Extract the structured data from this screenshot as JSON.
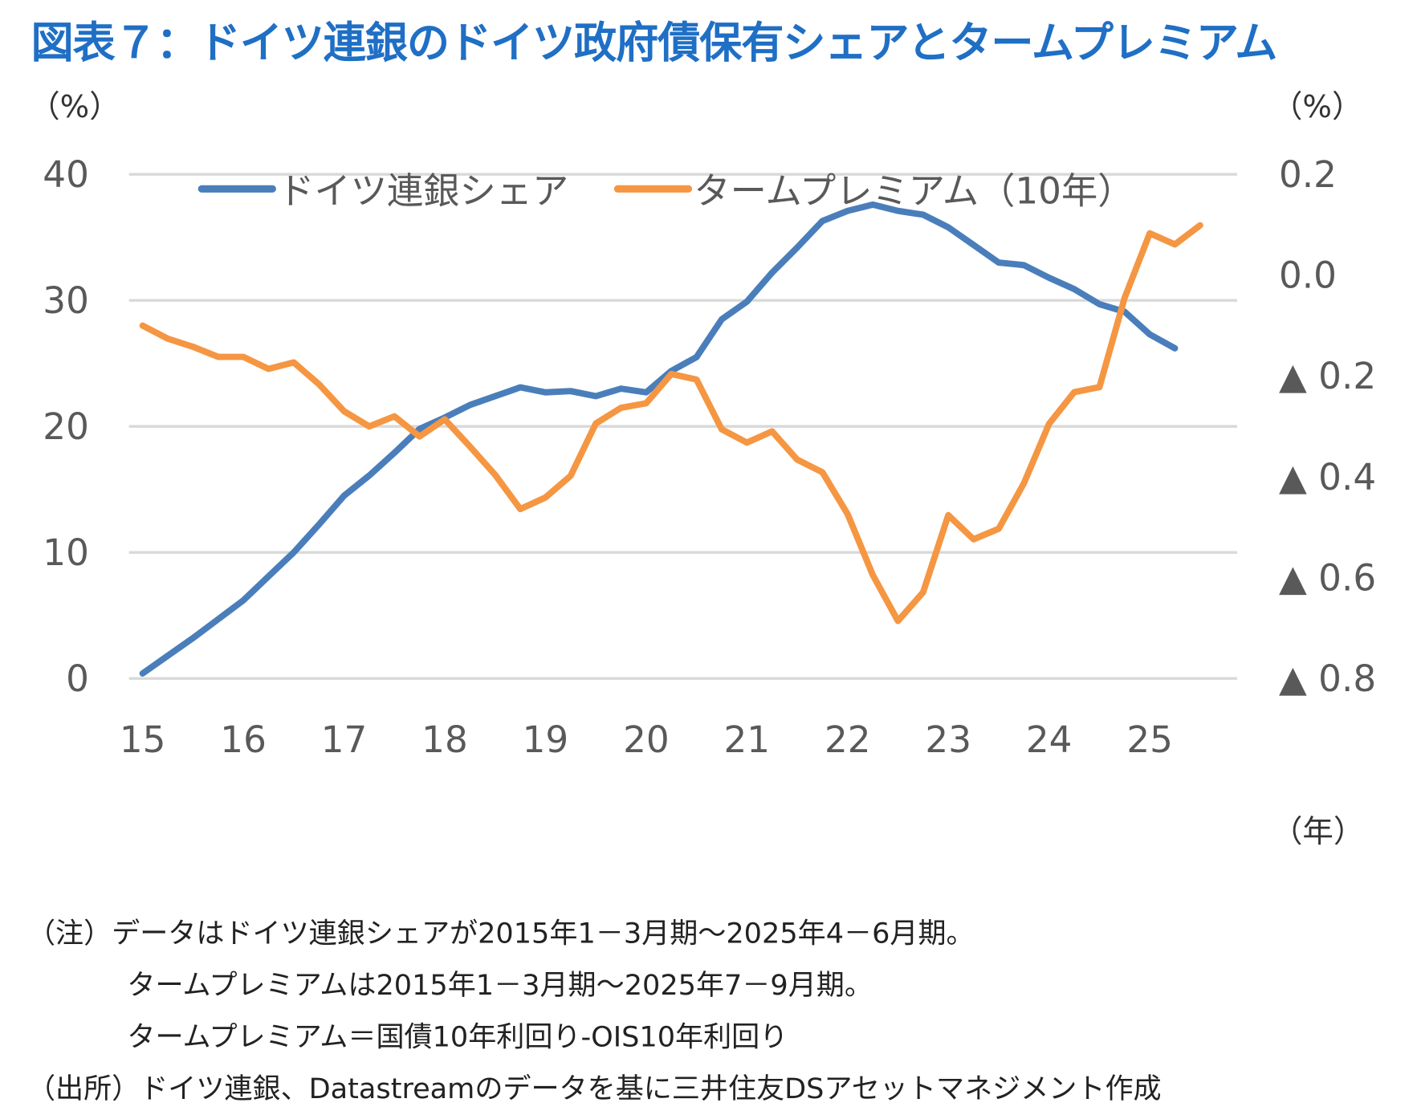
{
  "title": "図表７：ドイツ連銀のドイツ政府債保有シェアとタームプレミアム",
  "notes": [
    "（注）データはドイツ連銀シェアが2015年1－3月期～2025年4－6月期。",
    "タームプレミアムは2015年1－3月期～2025年7－9月期。",
    "タームプレミアム＝国債10年利回り-OIS10年利回り",
    "（出所）ドイツ連銀、Datastreamのデータを基に三井住友DSアセットマネジメント作成"
  ],
  "chart_data": {
    "type": "line",
    "left_unit": "（%）",
    "right_unit": "（%）",
    "x_unit": "（年）",
    "x_ticks": [
      "15",
      "16",
      "17",
      "18",
      "19",
      "20",
      "21",
      "22",
      "23",
      "24",
      "25"
    ],
    "y_left": {
      "lim": [
        0,
        40
      ],
      "ticks": [
        0,
        10,
        20,
        30,
        40
      ],
      "tick_labels": [
        "0",
        "10",
        "20",
        "30",
        "40"
      ]
    },
    "y_right": {
      "lim": [
        -0.8,
        0.2
      ],
      "ticks": [
        0.2,
        0.0,
        -0.2,
        -0.4,
        -0.6,
        -0.8
      ],
      "tick_labels": [
        "0.2",
        "0.0",
        "▲ 0.2",
        "▲ 0.4",
        "▲ 0.6",
        "▲ 0.8"
      ]
    },
    "grid": true,
    "legend": "top",
    "x_start": "2015Q1",
    "frequency": "quarterly",
    "series": [
      {
        "name": "ドイツ連銀シェア",
        "axis": "left",
        "color": "#4a7ebb",
        "values": [
          0.4,
          1.8,
          3.2,
          4.7,
          6.2,
          8.1,
          10.0,
          12.2,
          14.5,
          16.1,
          17.9,
          19.8,
          20.7,
          21.7,
          22.4,
          23.1,
          22.7,
          22.8,
          22.4,
          23.0,
          22.7,
          24.4,
          25.5,
          28.5,
          29.9,
          32.2,
          34.2,
          36.3,
          37.1,
          37.6,
          37.1,
          36.8,
          35.8,
          34.4,
          33.0,
          32.8,
          31.8,
          30.9,
          29.7,
          29.1,
          27.3,
          26.2
        ]
      },
      {
        "name": "タームプレミアム（10年）",
        "axis": "right",
        "color": "#f59642",
        "values": [
          -0.1,
          -0.126,
          -0.142,
          -0.162,
          -0.162,
          -0.186,
          -0.173,
          -0.216,
          -0.27,
          -0.3,
          -0.28,
          -0.32,
          -0.286,
          -0.34,
          -0.396,
          -0.464,
          -0.441,
          -0.398,
          -0.294,
          -0.263,
          -0.254,
          -0.196,
          -0.207,
          -0.306,
          -0.332,
          -0.31,
          -0.366,
          -0.391,
          -0.474,
          -0.595,
          -0.686,
          -0.629,
          -0.476,
          -0.524,
          -0.503,
          -0.413,
          -0.295,
          -0.232,
          -0.222,
          -0.045,
          0.083,
          0.061,
          0.099
        ]
      }
    ]
  }
}
